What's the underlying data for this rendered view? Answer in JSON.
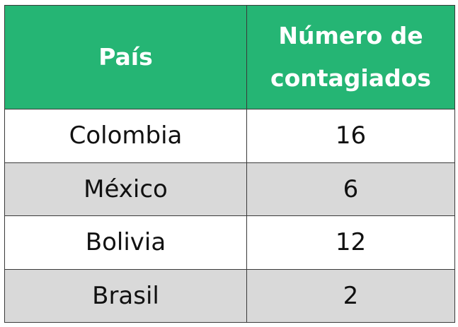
{
  "chart_data": {
    "type": "table",
    "columns": [
      "País",
      "Número de contagiados"
    ],
    "header": {
      "col1": "País",
      "col2_line1": "Número de",
      "col2_line2": "contagiados"
    },
    "rows": [
      {
        "country": "Colombia",
        "cases": "16"
      },
      {
        "country": "México",
        "cases": "6"
      },
      {
        "country": "Bolivia",
        "cases": "12"
      },
      {
        "country": "Brasil",
        "cases": "2"
      }
    ]
  },
  "colors": {
    "header_bg": "#25b574",
    "header_text": "#ffffff",
    "stripe": "#d9d9d9",
    "border": "#3a3a3a"
  }
}
